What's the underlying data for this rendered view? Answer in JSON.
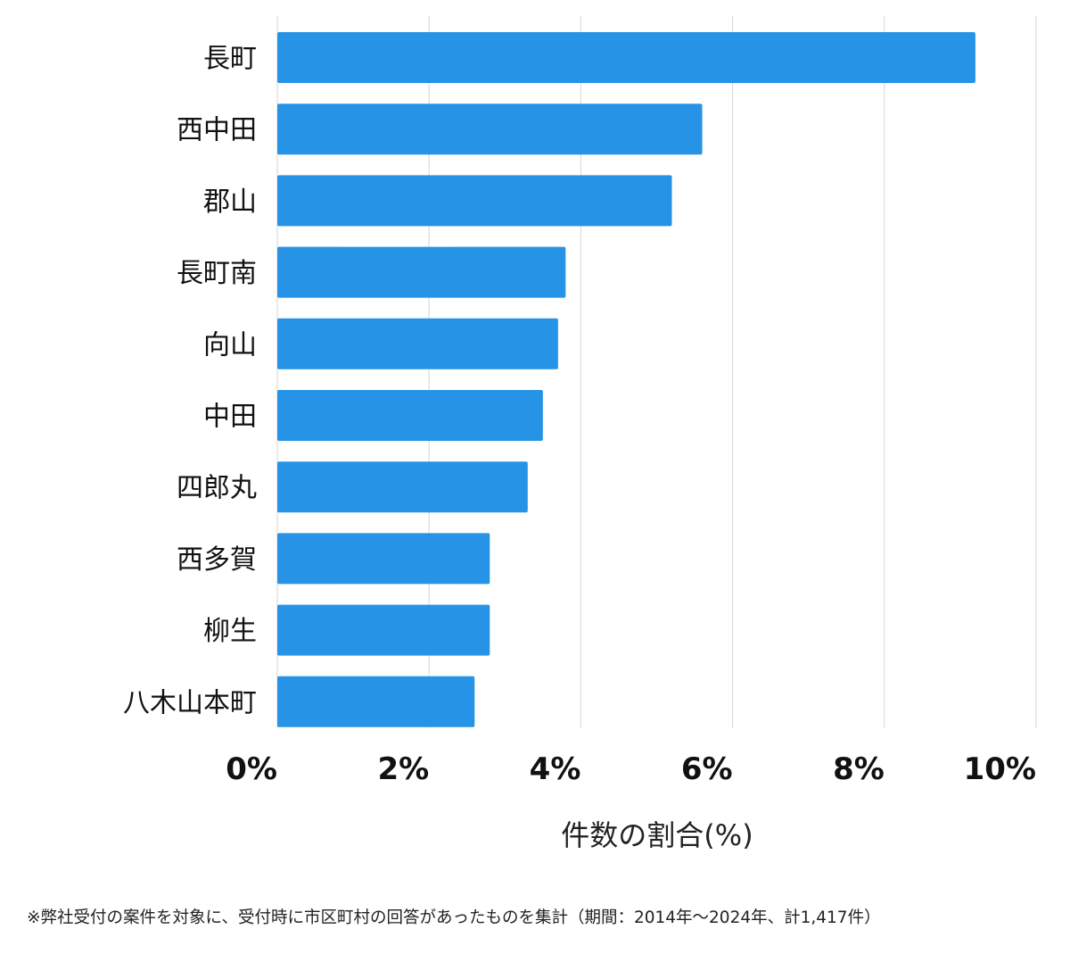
{
  "chart_data": {
    "type": "bar",
    "orientation": "horizontal",
    "categories": [
      "長町",
      "西中田",
      "郡山",
      "長町南",
      "向山",
      "中田",
      "四郎丸",
      "西多賀",
      "柳生",
      "八木山本町"
    ],
    "values": [
      9.2,
      5.6,
      5.2,
      3.8,
      3.7,
      3.5,
      3.3,
      2.8,
      2.8,
      2.6
    ],
    "xlim": [
      0,
      10
    ],
    "xticks": [
      0,
      2,
      4,
      6,
      8,
      10
    ],
    "xtick_labels": [
      "0%",
      "2%",
      "4%",
      "6%",
      "8%",
      "10%"
    ],
    "xlabel": "件数の割合(%)",
    "bar_color": "#2693e6",
    "grid": true
  },
  "footnote": "※弊社受付の案件を対象に、受付時に市区町村の回答があったものを集計（期間：2014年〜2024年、計1,417件）"
}
